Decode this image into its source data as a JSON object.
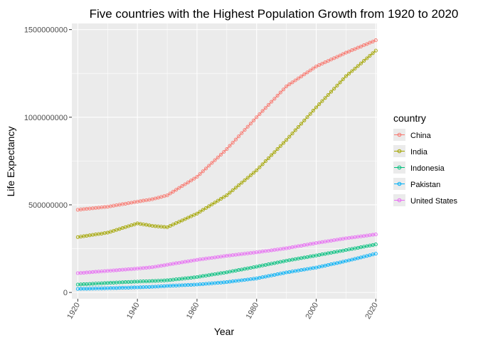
{
  "chart_data": {
    "type": "line",
    "title": "Five countries with the Highest Population Growth from 1920 to 2020",
    "xlabel": "Year",
    "ylabel": "Life Expectancy",
    "xlim": [
      1920,
      2020
    ],
    "ylim": [
      0,
      1500000000
    ],
    "x_ticks": [
      1920,
      1940,
      1960,
      1980,
      2000,
      2020
    ],
    "y_ticks": [
      0,
      500000000,
      1000000000,
      1500000000
    ],
    "y_tick_labels": [
      "0",
      "500000000",
      "1000000000",
      "1500000000"
    ],
    "grid": true,
    "background": "#EBEBEB",
    "marker": "open-circle",
    "legend": {
      "title": "country",
      "position": "right"
    },
    "x": [
      1920,
      1930,
      1940,
      1945,
      1950,
      1960,
      1970,
      1980,
      1990,
      2000,
      2010,
      2020
    ],
    "series": [
      {
        "name": "China",
        "color": "#F8766D",
        "values": [
          472000000,
          489000000,
          518000000,
          532000000,
          554000000,
          660000000,
          818000000,
          1000000000,
          1176000000,
          1290000000,
          1368000000,
          1439000000
        ]
      },
      {
        "name": "India",
        "color": "#A3A500",
        "values": [
          316000000,
          341000000,
          394000000,
          380000000,
          372000000,
          450000000,
          555000000,
          697000000,
          870000000,
          1056000000,
          1234000000,
          1380000000
        ]
      },
      {
        "name": "Indonesia",
        "color": "#00BF7D",
        "values": [
          45000000,
          54000000,
          62000000,
          65000000,
          69000000,
          88000000,
          115000000,
          147000000,
          181000000,
          211000000,
          242000000,
          274000000
        ]
      },
      {
        "name": "Pakistan",
        "color": "#00B0F6",
        "values": [
          20000000,
          24000000,
          29000000,
          32000000,
          37000000,
          45000000,
          59000000,
          80000000,
          114000000,
          142000000,
          179000000,
          221000000
        ]
      },
      {
        "name": "United States",
        "color": "#E76BF3",
        "values": [
          110000000,
          123000000,
          136000000,
          144000000,
          158000000,
          186000000,
          209000000,
          229000000,
          252000000,
          282000000,
          309000000,
          331000000
        ]
      }
    ]
  }
}
